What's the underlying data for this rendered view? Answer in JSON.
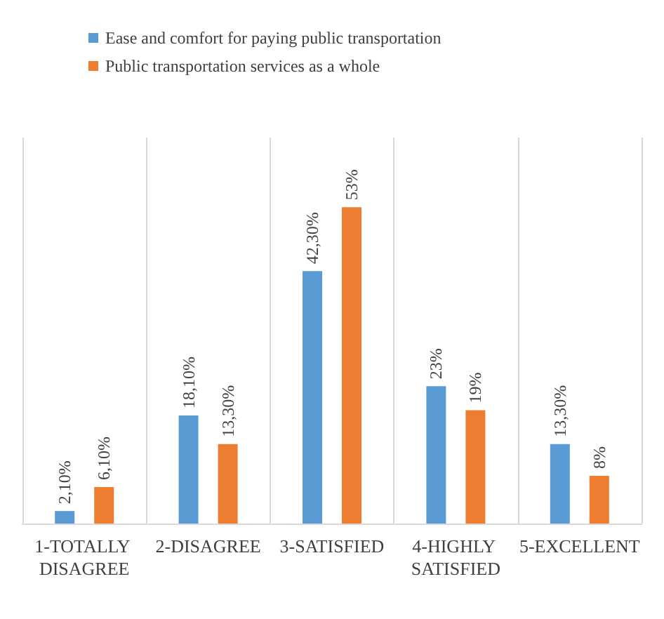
{
  "chart_data": {
    "type": "bar",
    "categories": [
      "1-TOTALLY DISAGREE",
      "2-DISAGREE",
      "3-SATISFIED",
      "4-HIGHLY SATISFIED",
      "5-EXCELLENT"
    ],
    "series": [
      {
        "name": "Ease and comfort for paying public transportation",
        "color": "#5b9bd5",
        "values": [
          2.1,
          18.1,
          42.3,
          23,
          13.3
        ],
        "value_labels": [
          "2,10%",
          "18,10%",
          "42,30%",
          "23%",
          "13,30%"
        ]
      },
      {
        "name": "Public transportation services as a whole",
        "color": "#ed7d31",
        "values": [
          6.1,
          13.3,
          53,
          19,
          8
        ],
        "value_labels": [
          "6,10%",
          "13,30%",
          "53%",
          "19%",
          "8%"
        ]
      }
    ],
    "legend": "top",
    "grid": "x",
    "tick_labels": "x"
  }
}
